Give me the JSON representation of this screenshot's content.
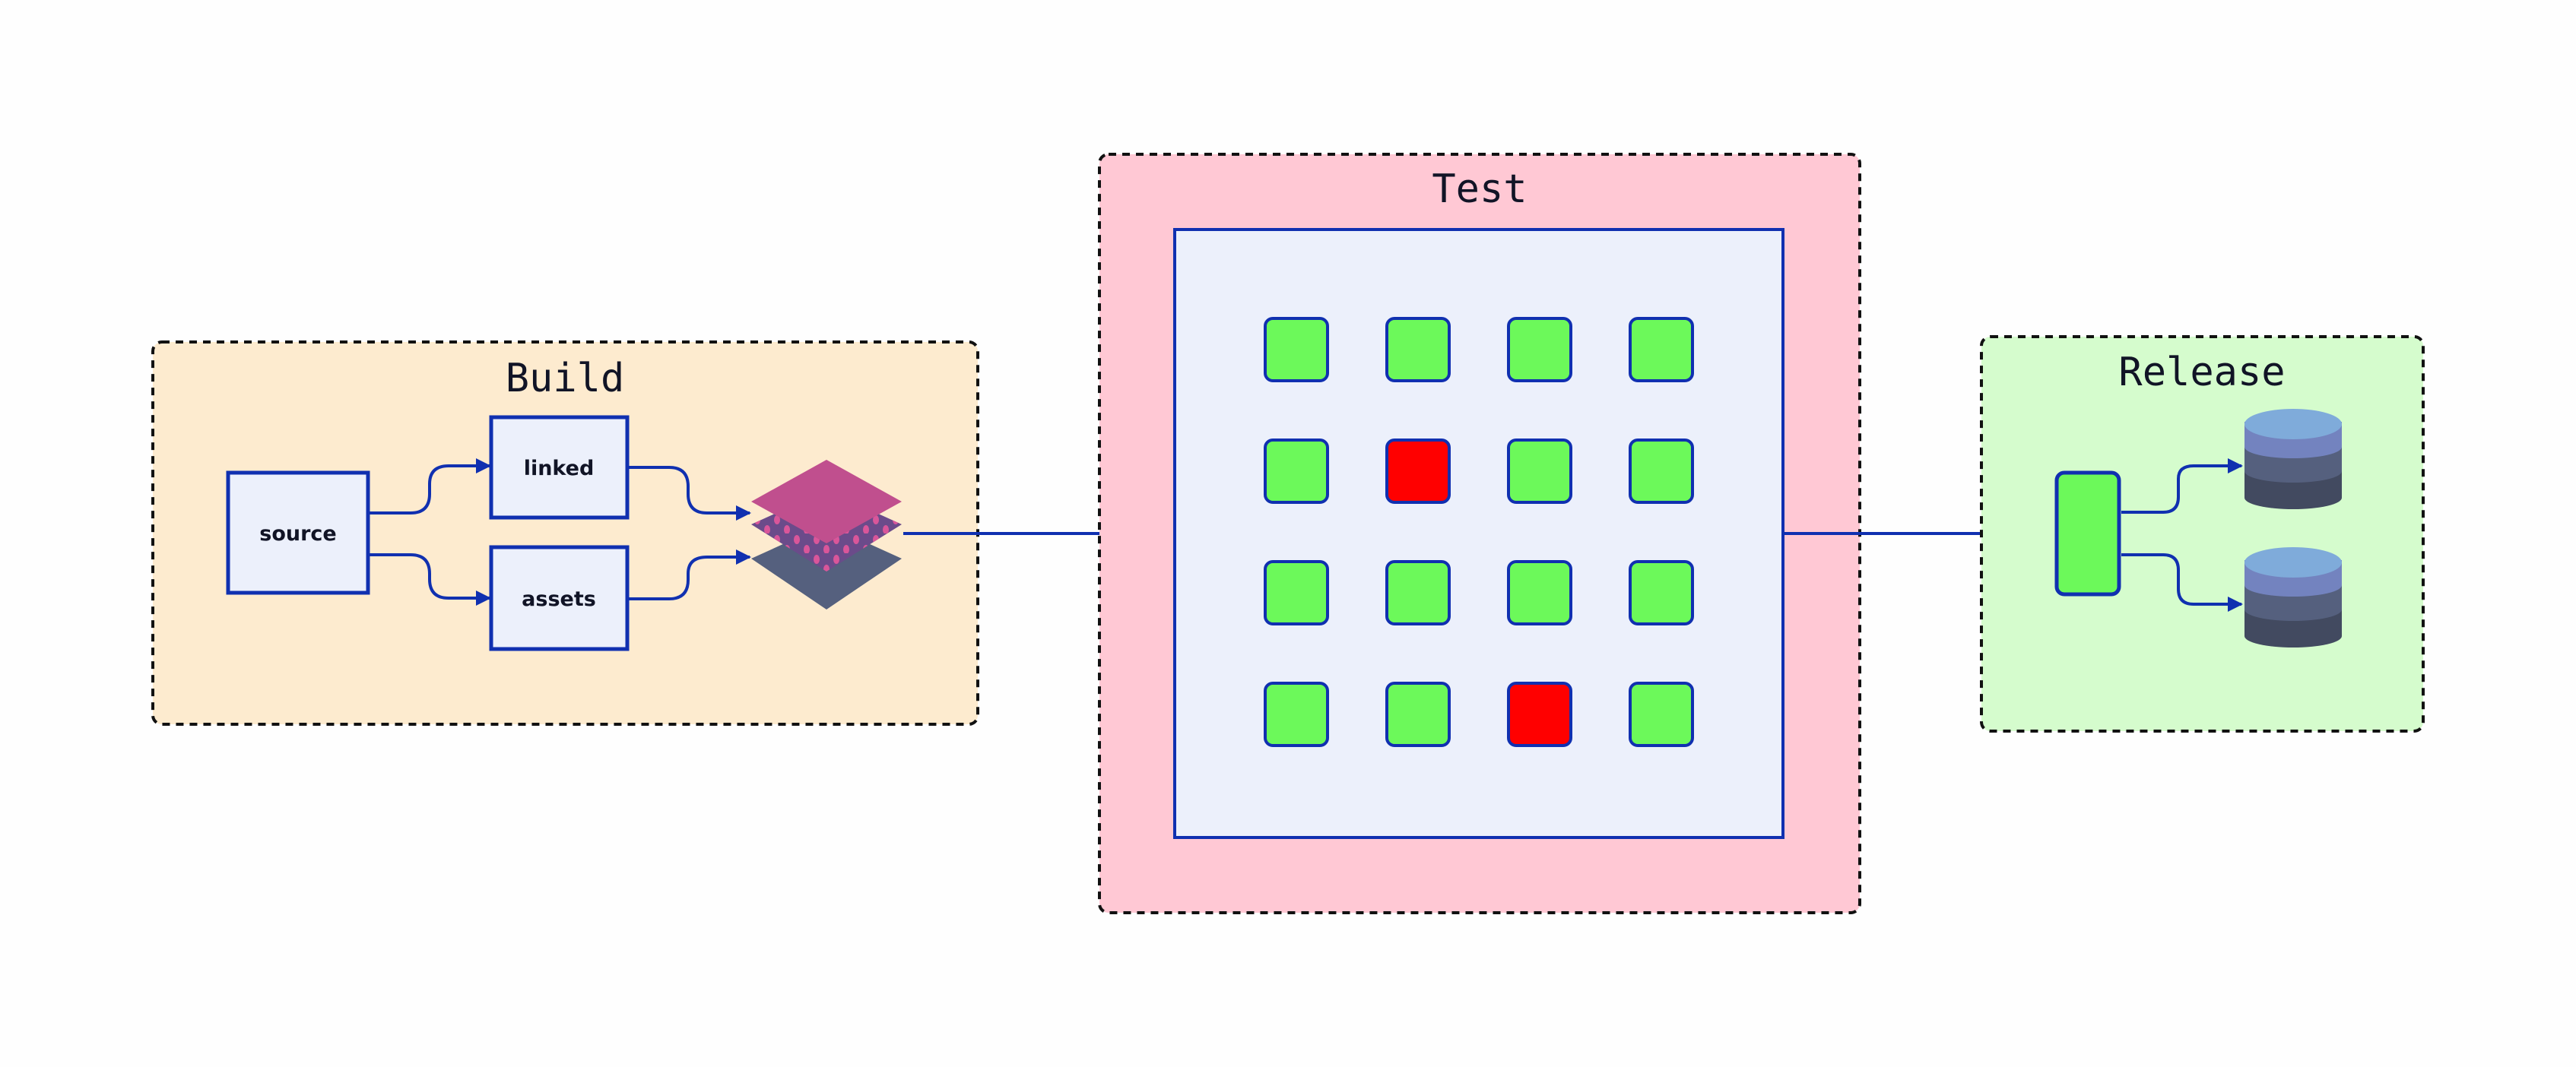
{
  "stages": {
    "build": {
      "title": "Build",
      "nodes": {
        "source": "source",
        "linked": "linked",
        "assets": "assets"
      },
      "output_icon": "layers-icon",
      "color": "#fdebcf"
    },
    "test": {
      "title": "Test",
      "color": "#ffc8d4",
      "grid": [
        [
          "pass",
          "pass",
          "pass",
          "pass"
        ],
        [
          "pass",
          "fail",
          "pass",
          "pass"
        ],
        [
          "pass",
          "pass",
          "pass",
          "pass"
        ],
        [
          "pass",
          "pass",
          "fail",
          "pass"
        ]
      ],
      "status_colors": {
        "pass": "#6cf95a",
        "fail": "#ff0000"
      }
    },
    "release": {
      "title": "Release",
      "color": "#d5fccd",
      "targets_icon": "database-icon",
      "node_color": "#6cf95a"
    }
  },
  "edge_color": "#1030b0"
}
